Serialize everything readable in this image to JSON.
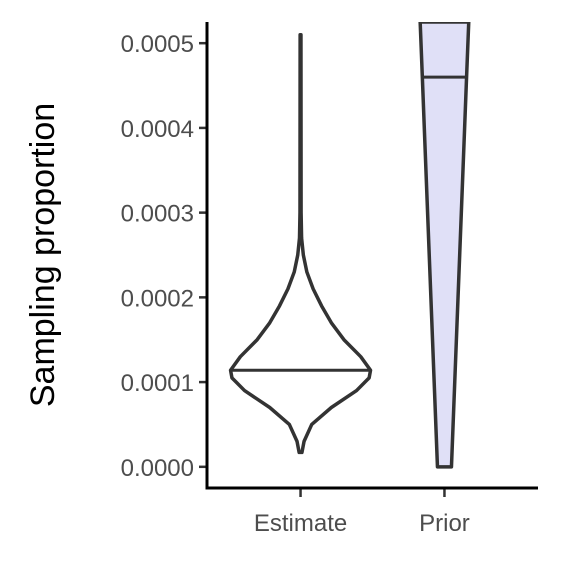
{
  "chart_data": {
    "type": "violin",
    "title": "",
    "xlabel": "",
    "ylabel": "Sampling proportion",
    "ylim": [
      -2.5e-05,
      0.000525
    ],
    "yticks": [
      "0.0000",
      "0.0001",
      "0.0002",
      "0.0003",
      "0.0004",
      "0.0005"
    ],
    "ytick_values": [
      0,
      0.0001,
      0.0002,
      0.0003,
      0.0004,
      0.0005
    ],
    "categories": [
      "Estimate",
      "Prior"
    ],
    "grid": false,
    "legend": "none",
    "series": [
      {
        "category": "Estimate",
        "fill": "#ffffff",
        "outline": "#333333",
        "median": 0.000114,
        "min": 1.7e-05,
        "max": 0.00051,
        "density_profile": [
          [
            1.7e-05,
            0.02
          ],
          [
            3e-05,
            0.05
          ],
          [
            5e-05,
            0.16
          ],
          [
            7e-05,
            0.44
          ],
          [
            9e-05,
            0.8
          ],
          [
            0.000105,
            0.98
          ],
          [
            0.000114,
            1.0
          ],
          [
            0.00013,
            0.86
          ],
          [
            0.00015,
            0.62
          ],
          [
            0.00017,
            0.44
          ],
          [
            0.00019,
            0.3
          ],
          [
            0.00021,
            0.18
          ],
          [
            0.00023,
            0.09
          ],
          [
            0.00025,
            0.04
          ],
          [
            0.00027,
            0.015
          ],
          [
            0.0003,
            0.008
          ],
          [
            0.0004,
            0.007
          ],
          [
            0.00051,
            0.006
          ]
        ]
      },
      {
        "category": "Prior",
        "fill": "#e0e0f7",
        "outline": "#333333",
        "median": 0.00046,
        "min": 0.0,
        "max": 0.000525,
        "density_profile": [
          [
            0.0,
            0.1
          ],
          [
            0.0001,
            0.147
          ],
          [
            0.0002,
            0.194
          ],
          [
            0.0003,
            0.241
          ],
          [
            0.0004,
            0.288
          ],
          [
            0.00046,
            0.316
          ],
          [
            0.000525,
            0.347
          ]
        ]
      }
    ]
  }
}
